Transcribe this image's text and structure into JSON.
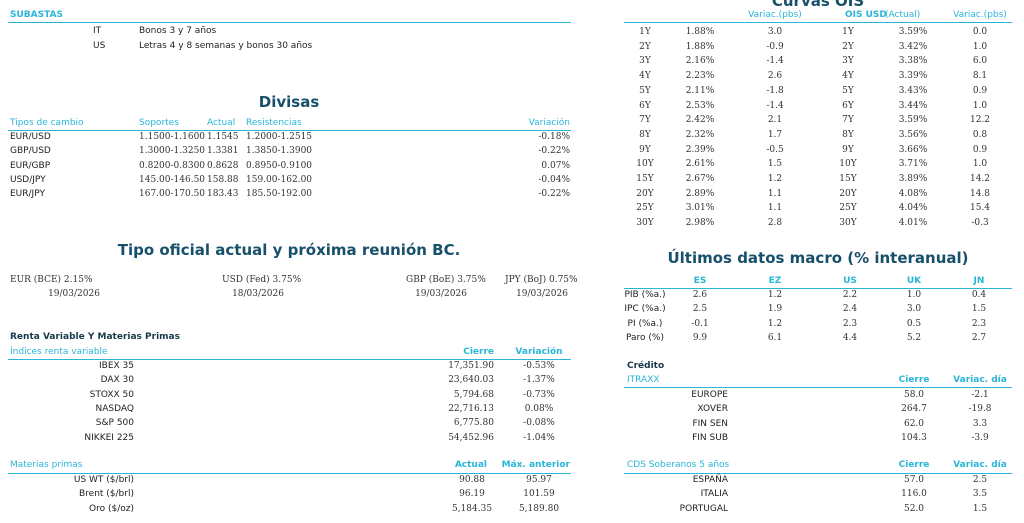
{
  "subastas": {
    "label": "SUBASTAS",
    "items": [
      {
        "country": "IT",
        "text": "Bonos 3 y 7 años"
      },
      {
        "country": "US",
        "text": "Letras 4 y 8 semanas y bonos 30 años"
      }
    ]
  },
  "divisas": {
    "title": "Divisas",
    "headers": [
      "Tipos de cambio",
      "Soportes",
      "Actual",
      "Resistencias",
      "Variación"
    ],
    "rows": [
      [
        "EUR/USD",
        "1.1500-1.1600",
        "1.1545",
        "1.2000-1.2515",
        "-0.18%"
      ],
      [
        "GBP/USD",
        "1.3000-1.3250",
        "1.3381",
        "1.3850-1.3900",
        "-0.22%"
      ],
      [
        "EUR/GBP",
        "0.8200-0.8300",
        "0.8628",
        "0.8950-0.9100",
        "0.07%"
      ],
      [
        "USD/JPY",
        "145.00-146.50",
        "158.88",
        "159.00-162.00",
        "-0.04%"
      ],
      [
        "EUR/JPY",
        "167.00-170.50",
        "183.43",
        "185.50-192.00",
        "-0.22%"
      ]
    ]
  },
  "tipo_oficial": {
    "title": "Tipo oficial actual y próxima reunión BC.",
    "items": [
      {
        "rate": "EUR (BCE) 2.15%",
        "date": "19/03/2026"
      },
      {
        "rate": "USD (Fed) 3.75%",
        "date": "18/03/2026"
      },
      {
        "rate": "GBP (BoE) 3.75%",
        "date": "19/03/2026"
      },
      {
        "rate": "JPY (BoJ) 0.75%",
        "date": "19/03/2026"
      }
    ]
  },
  "renta_variable": {
    "title": "Renta Variable Y Materias Primas",
    "headers": [
      "Índices renta variable",
      "Cierre",
      "Variación"
    ],
    "rows": [
      [
        "IBEX 35",
        "17,351.90",
        "-0.53%"
      ],
      [
        "DAX 30",
        "23,640.03",
        "-1.37%"
      ],
      [
        "STOXX 50",
        "5,794.68",
        "-0.73%"
      ],
      [
        "NASDAQ",
        "22,716.13",
        "0.08%"
      ],
      [
        "S&P 500",
        "6,775.80",
        "-0.08%"
      ],
      [
        "NIKKEI 225",
        "54,452.96",
        "-1.04%"
      ]
    ]
  },
  "materias_primas": {
    "headers": [
      "Materias primas",
      "Actual",
      "Máx. anterior"
    ],
    "rows": [
      [
        "US WT ($/brl)",
        "90.88",
        "95.97"
      ],
      [
        "Brent ($/brl)",
        "96.19",
        "101.59"
      ],
      [
        "Oro ($/oz)",
        "5,184.35",
        "5,189.80"
      ]
    ]
  },
  "curvas_ois": {
    "title": "Curvas OIS",
    "headers": [
      "Variac.(pbs)",
      "OIS USD",
      "(Actual)",
      "Variac.(pbs)"
    ],
    "rows": [
      [
        "1Y",
        "1.88%",
        "3.0",
        "1Y",
        "3.59%",
        "0.0"
      ],
      [
        "2Y",
        "1.88%",
        "-0.9",
        "2Y",
        "3.42%",
        "1.0"
      ],
      [
        "3Y",
        "2.16%",
        "-1.4",
        "3Y",
        "3.38%",
        "6.0"
      ],
      [
        "4Y",
        "2.23%",
        "2.6",
        "4Y",
        "3.39%",
        "8.1"
      ],
      [
        "5Y",
        "2.11%",
        "-1.8",
        "5Y",
        "3.43%",
        "0.9"
      ],
      [
        "6Y",
        "2.53%",
        "-1.4",
        "6Y",
        "3.44%",
        "1.0"
      ],
      [
        "7Y",
        "2.42%",
        "2.1",
        "7Y",
        "3.59%",
        "12.2"
      ],
      [
        "8Y",
        "2.32%",
        "1.7",
        "8Y",
        "3.56%",
        "0.8"
      ],
      [
        "9Y",
        "2.39%",
        "-0.5",
        "9Y",
        "3.66%",
        "0.9"
      ],
      [
        "10Y",
        "2.61%",
        "1.5",
        "10Y",
        "3.71%",
        "1.0"
      ],
      [
        "15Y",
        "2.67%",
        "1.2",
        "15Y",
        "3.89%",
        "14.2"
      ],
      [
        "20Y",
        "2.89%",
        "1.1",
        "20Y",
        "4.08%",
        "14.8"
      ],
      [
        "25Y",
        "3.01%",
        "1.1",
        "25Y",
        "4.04%",
        "15.4"
      ],
      [
        "30Y",
        "2.98%",
        "2.8",
        "30Y",
        "4.01%",
        "-0.3"
      ]
    ]
  },
  "macro": {
    "title": "Últimos datos macro (% interanual)",
    "headers": [
      "ES",
      "EZ",
      "US",
      "UK",
      "JN"
    ],
    "rows": [
      [
        "PIB (%a.)",
        "2.6",
        "1.2",
        "2.2",
        "1.0",
        "0.4"
      ],
      [
        "IPC (%a.)",
        "2.5",
        "1.9",
        "2.4",
        "3.0",
        "1.5"
      ],
      [
        "PI (%a.)",
        "-0.1",
        "1.2",
        "2.3",
        "0.5",
        "2.3"
      ],
      [
        "Paro (%)",
        "9.9",
        "6.1",
        "4.4",
        "5.2",
        "2.7"
      ]
    ]
  },
  "credito": {
    "title": "Crédito",
    "headers": [
      "ITRAXX",
      "Cierre",
      "Variac. día"
    ],
    "rows": [
      [
        "EUROPE",
        "58.0",
        "-2.1"
      ],
      [
        "XOVER",
        "264.7",
        "-19.8"
      ],
      [
        "FIN SEN",
        "62.0",
        "3.3"
      ],
      [
        "FIN SUB",
        "104.3",
        "-3.9"
      ]
    ]
  },
  "cds": {
    "headers": [
      "CDS Soberanos 5 años",
      "Cierre",
      "Variac. día"
    ],
    "rows": [
      [
        "ESPAÑA",
        "57.0",
        "2.5"
      ],
      [
        "ITALIA",
        "116.0",
        "3.5"
      ],
      [
        "PORTUGAL",
        "52.0",
        "1.5"
      ]
    ]
  },
  "colors": {
    "accent": "#29b6d9",
    "title": "#17506a"
  }
}
